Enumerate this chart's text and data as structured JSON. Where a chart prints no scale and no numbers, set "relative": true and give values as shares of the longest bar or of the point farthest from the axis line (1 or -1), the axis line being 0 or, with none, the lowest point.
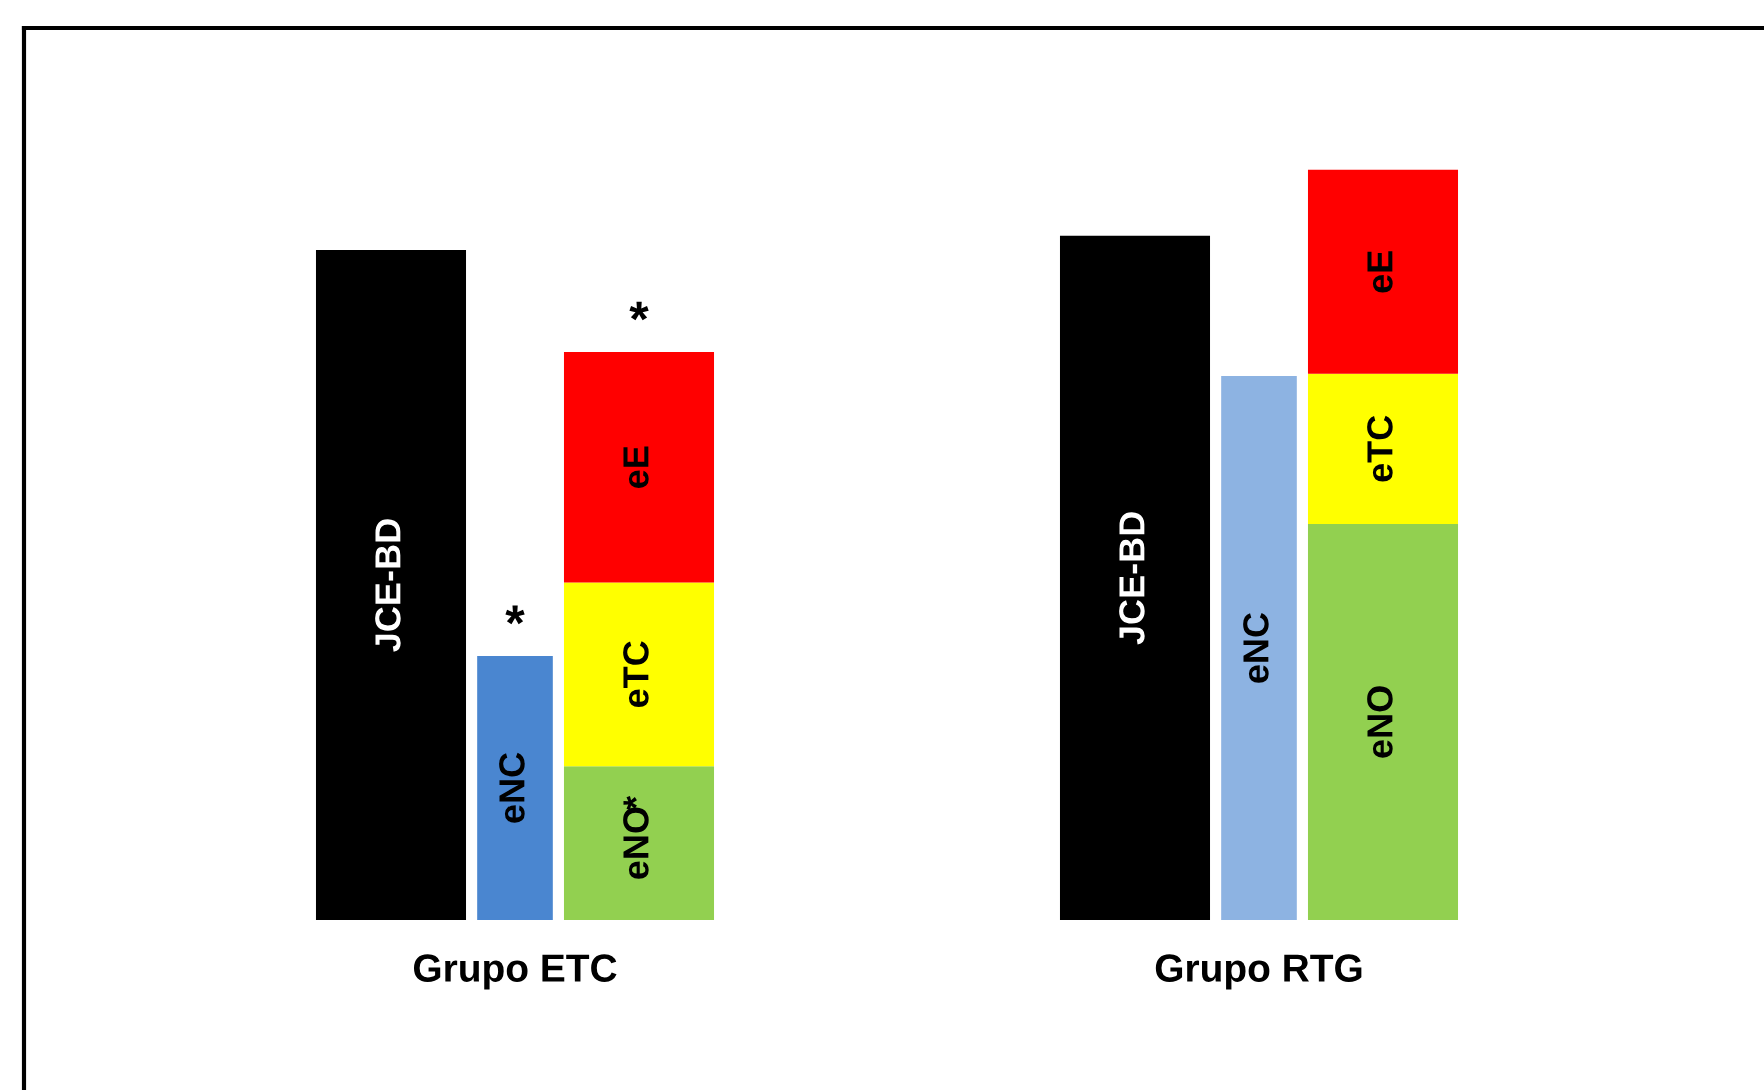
{
  "chart_data": {
    "type": "bar",
    "relative": true,
    "stacked": true,
    "categories": [
      null,
      "Grupo ETC",
      null,
      null,
      null,
      null,
      null,
      "Grupo RTG",
      null
    ],
    "grid": false,
    "legend": false,
    "series": [
      {
        "name": "JCE-BD",
        "color": "#000000",
        "values": [
          0.893,
          null,
          null,
          null,
          null,
          null,
          0.912,
          null,
          null
        ]
      },
      {
        "name": "eNC",
        "colors": [
          "#4a86d0",
          "#4a86d0",
          "#4a86d0",
          "#4a86d0",
          "#4a86d0",
          "#4a86d0",
          "#8db3e2",
          "#8db3e2",
          "#8db3e2"
        ],
        "values": [
          null,
          0.352,
          null,
          null,
          null,
          null,
          null,
          0.725,
          null
        ]
      },
      {
        "name": "eNO",
        "color": "#92d050",
        "values": [
          null,
          null,
          0.205,
          null,
          null,
          null,
          null,
          null,
          0.528
        ]
      },
      {
        "name": "eTC",
        "color": "#ffff00",
        "values": [
          null,
          null,
          0.245,
          null,
          null,
          null,
          null,
          null,
          0.2
        ]
      },
      {
        "name": "eE",
        "color": "#ff0000",
        "values": [
          null,
          null,
          0.307,
          null,
          null,
          null,
          null,
          null,
          0.272
        ]
      }
    ],
    "annotations": [
      {
        "text": "*",
        "x": "Grupo ETC",
        "y": 0.352
      },
      {
        "text": "*",
        "y": 0.757
      },
      {
        "text": "*",
        "y": 0.205
      }
    ]
  }
}
